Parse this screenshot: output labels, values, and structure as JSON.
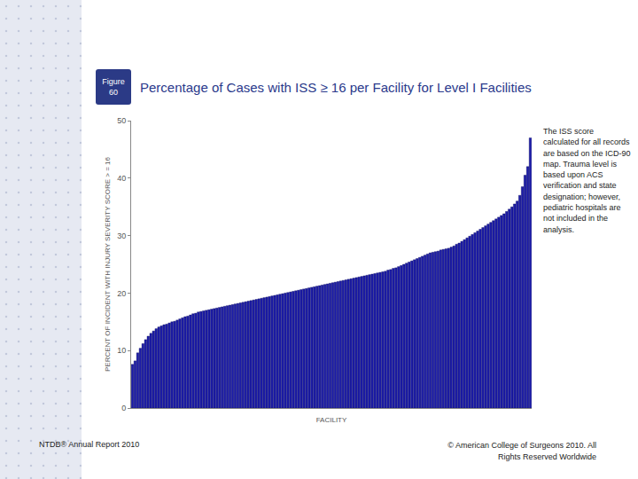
{
  "figure_label": "Figure 60",
  "note": "The ISS score calculated for all records are based on the ICD-90 map. Trauma level is based upon ACS verification and state designation; however, pediatric hospitals are not included in the analysis.",
  "footer": {
    "left": "NTDB® Annual Report 2010",
    "right": "© American College of Surgeons 2010.  All Rights Reserved Worldwide"
  },
  "chart_data": {
    "type": "bar",
    "title": "Percentage of Cases with ISS ≥ 16 per Facility for Level I Facilities",
    "x_label": "FACILITY",
    "y_label": "PERCENT OF INCIDENT WITH INJURY SEVERITY SCORE > = 16",
    "categories": [
      null,
      null,
      null,
      null,
      null,
      null,
      null,
      null,
      null,
      null,
      null,
      null,
      null,
      null,
      null,
      null,
      null,
      null,
      null,
      null,
      null,
      null,
      null,
      null,
      null,
      null,
      null,
      null,
      null,
      null,
      null,
      null,
      null,
      null,
      null,
      null,
      null,
      null,
      null,
      null,
      null,
      null,
      null,
      null,
      null,
      null,
      null,
      null,
      null,
      null,
      null,
      null,
      null,
      null,
      null,
      null,
      null,
      null,
      null,
      null,
      null,
      null,
      null,
      null,
      null,
      null,
      null,
      null,
      null,
      null,
      null,
      null,
      null,
      null,
      null,
      null,
      null,
      null,
      null,
      null,
      null,
      null,
      null,
      null,
      null,
      null,
      null,
      null,
      null,
      null,
      null,
      null,
      null,
      null,
      null,
      null,
      null,
      null,
      null,
      null,
      null,
      null,
      null,
      null,
      null,
      null,
      null,
      null,
      null,
      null,
      null,
      null,
      null,
      null,
      null,
      null,
      null,
      null,
      null,
      null,
      null,
      null,
      null,
      null,
      null,
      null,
      null,
      null,
      null,
      null,
      null,
      null,
      null,
      null,
      null,
      null,
      null,
      null,
      null,
      null,
      null,
      null,
      null,
      null,
      null,
      null,
      null,
      null,
      null,
      null,
      null,
      null
    ],
    "values": [
      7.6,
      8.2,
      9.6,
      10.4,
      11.2,
      11.9,
      12.5,
      13.0,
      13.4,
      13.8,
      14.1,
      14.3,
      14.5,
      14.6,
      14.8,
      15.0,
      15.1,
      15.3,
      15.5,
      15.7,
      15.9,
      16.0,
      16.2,
      16.4,
      16.5,
      16.7,
      16.8,
      16.9,
      17.0,
      17.1,
      17.2,
      17.3,
      17.4,
      17.5,
      17.6,
      17.7,
      17.8,
      17.9,
      18.0,
      18.1,
      18.2,
      18.3,
      18.4,
      18.5,
      18.6,
      18.7,
      18.8,
      18.9,
      19.0,
      19.1,
      19.2,
      19.3,
      19.4,
      19.5,
      19.6,
      19.7,
      19.8,
      19.9,
      20.0,
      20.1,
      20.2,
      20.3,
      20.4,
      20.5,
      20.6,
      20.7,
      20.8,
      20.9,
      21.0,
      21.1,
      21.2,
      21.3,
      21.4,
      21.5,
      21.6,
      21.7,
      21.8,
      21.9,
      22.0,
      22.1,
      22.2,
      22.3,
      22.4,
      22.5,
      22.6,
      22.7,
      22.8,
      22.9,
      23.0,
      23.1,
      23.2,
      23.3,
      23.4,
      23.5,
      23.6,
      23.7,
      23.8,
      24.0,
      24.1,
      24.3,
      24.4,
      24.6,
      24.8,
      25.0,
      25.2,
      25.4,
      25.6,
      25.8,
      26.0,
      26.2,
      26.4,
      26.6,
      26.8,
      27.0,
      27.1,
      27.2,
      27.3,
      27.5,
      27.6,
      27.7,
      27.8,
      28.0,
      28.2,
      28.5,
      28.7,
      29.0,
      29.3,
      29.6,
      29.9,
      30.2,
      30.5,
      30.8,
      31.1,
      31.4,
      31.7,
      32.0,
      32.3,
      32.6,
      32.9,
      33.2,
      33.5,
      33.8,
      34.2,
      34.6,
      35.0,
      35.5,
      36.0,
      37.0,
      38.5,
      40.5,
      42.0,
      47.0
    ],
    "color": "#1c1ca8",
    "ylim": [
      0,
      50
    ],
    "yticks": [
      0,
      10,
      20,
      30,
      40,
      50
    ],
    "grid": false,
    "tick_labels": "y"
  }
}
